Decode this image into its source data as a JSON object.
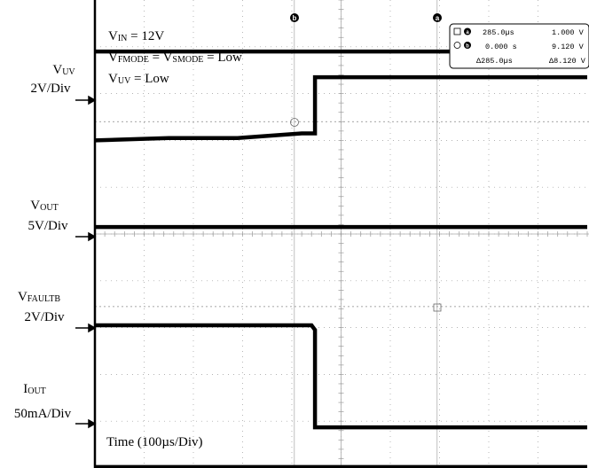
{
  "chart_data": {
    "type": "line",
    "title": "",
    "xlabel": "Time (100µs/Div)",
    "x_unit": "µs",
    "xlim": [
      0,
      1000
    ],
    "conditions": {
      "vin": {
        "main": "V",
        "sub": "IN",
        "rest": " = 12V"
      },
      "mode": {
        "a_main": "V",
        "a_sub": "FMODE",
        "b_main": "V",
        "b_sub": "SMODE",
        "rest": " = Low"
      },
      "vuv": {
        "main": "V",
        "sub": "UV",
        "rest": " = Low"
      }
    },
    "channels": [
      {
        "id": "vuv",
        "name_main": "V",
        "name_sub": "UV",
        "scale": "2V/Div",
        "points": [
          [
            0,
            8.9
          ],
          [
            1000,
            8.9
          ]
        ]
      },
      {
        "id": "vout",
        "name_main": "V",
        "name_sub": "OUT",
        "scale": "5V/Div",
        "points": [
          [
            0,
            5.15
          ],
          [
            1000,
            5.15
          ]
        ]
      },
      {
        "id": "vfaultb",
        "name_main": "V",
        "name_sub": "FAULTB",
        "scale": "2V/Div",
        "points": [
          [
            0,
            7.0
          ],
          [
            150,
            7.05
          ],
          [
            290,
            7.05
          ],
          [
            420,
            7.15
          ],
          [
            447,
            7.15
          ],
          [
            447,
            8.35
          ],
          [
            1000,
            8.35
          ]
        ]
      },
      {
        "id": "vfaultb2",
        "name_main": "",
        "name_sub": "",
        "scale": "",
        "points": [
          [
            0,
            3.05
          ],
          [
            440,
            3.05
          ],
          [
            447,
            2.95
          ],
          [
            447,
            0.87
          ],
          [
            1000,
            0.87
          ]
        ]
      },
      {
        "id": "iout",
        "name_main": "I",
        "name_sub": "OUT",
        "scale": "50mA/Div",
        "points": [
          [
            0,
            0.02
          ],
          [
            1000,
            0.02
          ]
        ]
      }
    ],
    "cursor_readout": {
      "row_a": [
        "285.0µs",
        "1.000 V"
      ],
      "row_b": [
        "0.000 s",
        "9.120 V"
      ],
      "delta": [
        "Δ285.0µs",
        "Δ8.120 V"
      ]
    },
    "cursor_a_label": "a",
    "cursor_b_label": "b"
  }
}
